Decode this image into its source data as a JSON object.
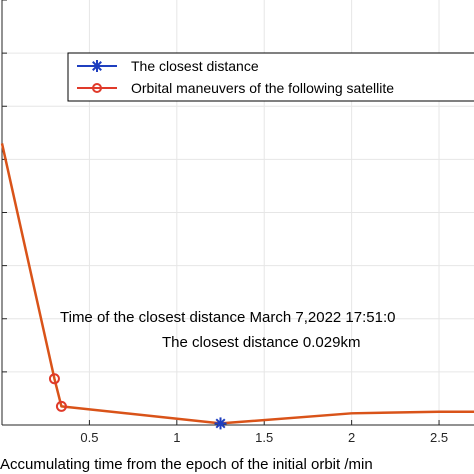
{
  "chart_data": {
    "type": "line",
    "xlabel": "Accumulating time from the epoch of the initial orbit /min",
    "x_ticks": [
      "0.5",
      "1",
      "1.5",
      "2",
      "2.5"
    ],
    "x_tick_values": [
      0.5,
      1,
      1.5,
      2,
      2.5
    ],
    "xlim": [
      0,
      2.7
    ],
    "ylim": [
      0,
      8
    ],
    "y_tick_values": [
      0,
      1,
      2,
      3,
      4,
      5,
      6,
      7,
      8
    ],
    "grid": true,
    "legend_position": "top-right",
    "legend": [
      {
        "label": "The closest distance",
        "color": "#1f3fbf",
        "marker": "asterisk"
      },
      {
        "label": "Orbital maneuvers of the following satellite",
        "color": "#e03a2a",
        "marker": "circle"
      }
    ],
    "series": [
      {
        "name": "Orbital maneuvers of the following satellite",
        "color": "#d95319",
        "x": [
          0.0,
          0.3,
          0.34,
          1.25,
          2.0,
          2.5,
          2.7
        ],
        "y": [
          5.3,
          0.87,
          0.35,
          0.03,
          0.22,
          0.25,
          0.25
        ]
      }
    ],
    "maneuver_points": {
      "x": [
        0.3,
        0.34
      ],
      "y": [
        0.87,
        0.35
      ]
    },
    "closest_point": {
      "x": 1.25,
      "y": 0.03
    },
    "annotations": [
      "Time of the closest distance March 7,2022 17:51:0",
      "The closest distance 0.029km"
    ]
  }
}
